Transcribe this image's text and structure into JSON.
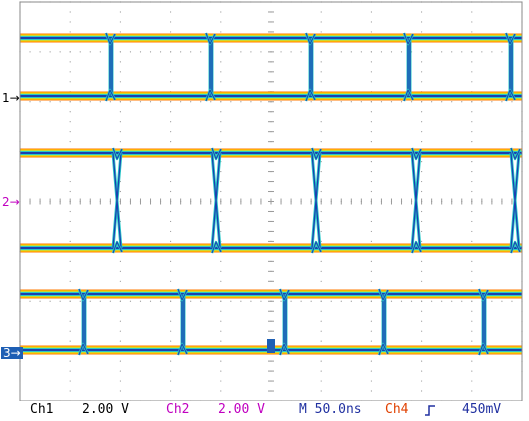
{
  "markers": [
    {
      "label": "1",
      "arrow": "→",
      "color": "#000000"
    },
    {
      "label": "2",
      "arrow": "→",
      "color": "#c000c0"
    },
    {
      "label": "3",
      "arrow": "→",
      "color": "#ffffff",
      "bg": "#1e5fb4"
    }
  ],
  "status": {
    "ch1_name": "Ch1",
    "ch1_scale": "2.00 V",
    "ch2_name": "Ch2",
    "ch2_scale": "2.00 V",
    "timebase": "M 50.0ns",
    "trigger_source": "Ch4",
    "trigger_slope_icon": "rising-edge-icon",
    "trigger_level": "450mV"
  },
  "colors": {
    "ch1_label": "#000000",
    "ch2_label": "#c000c0",
    "timebase": "#2030a0",
    "ch4_label": "#e04000",
    "trigger_level": "#2030a0",
    "waveform_core": "#1a3fb0",
    "waveform_mid": "#28c8c8",
    "waveform_outer": "#ffe000",
    "waveform_edge": "#ff7a00",
    "grid": "#9a9a9a"
  }
}
